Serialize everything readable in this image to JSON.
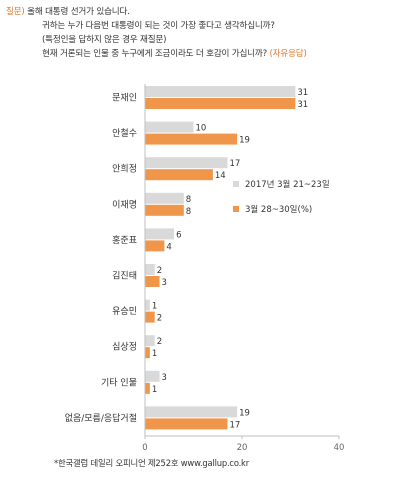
{
  "question": {
    "tag": "질문)",
    "line1": "올해 대통령 선거가 있습니다.",
    "line2": "귀하는 누가 다음번 대통령이 되는 것이 가장 좋다고 생각하십니까?",
    "line3": "(특정인을 답하지 않은 경우 재질문)",
    "line4": "현재 거론되는 인물 중 누구에게 조금이라도 더 호감이 가십니까?",
    "line4_suffix": "(자유응답)"
  },
  "footnote": "*한국갤럽 데일리 오피니언 제252호 www.gallup.co.kr",
  "colors": {
    "series1": "#d9d9d9",
    "series2": "#f0964a",
    "axis": "#bfbfbf",
    "text": "#333333"
  },
  "chart_data": {
    "type": "bar",
    "orientation": "horizontal",
    "categories": [
      "문재인",
      "안철수",
      "안희정",
      "이재명",
      "홍준표",
      "김진태",
      "유승민",
      "심상정",
      "기타 인물",
      "없음/모름/응답거절"
    ],
    "series": [
      {
        "name": "2017년 3월 21~23일",
        "values": [
          31,
          10,
          17,
          8,
          6,
          2,
          1,
          2,
          3,
          19
        ]
      },
      {
        "name": "3월 28~30일(%)",
        "values": [
          31,
          19,
          14,
          8,
          4,
          3,
          2,
          1,
          1,
          17
        ]
      }
    ],
    "xlim": [
      0,
      40
    ],
    "xticks": [
      0,
      20,
      40
    ],
    "grid": false,
    "data_labels": true,
    "legend_position": "right, beside 이재명 row"
  }
}
